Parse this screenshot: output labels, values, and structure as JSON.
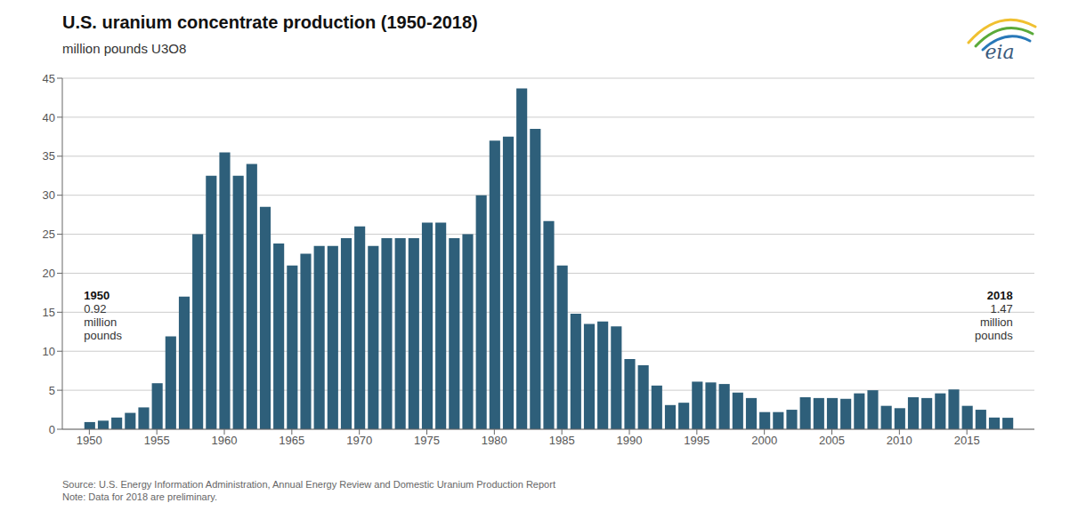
{
  "chart_data": {
    "type": "bar",
    "title": "U.S. uranium concentrate production (1950-2018)",
    "subtitle": "million pounds U3O8",
    "x": [
      1950,
      1951,
      1952,
      1953,
      1954,
      1955,
      1956,
      1957,
      1958,
      1959,
      1960,
      1961,
      1962,
      1963,
      1964,
      1965,
      1966,
      1967,
      1968,
      1969,
      1970,
      1971,
      1972,
      1973,
      1974,
      1975,
      1976,
      1977,
      1978,
      1979,
      1980,
      1981,
      1982,
      1983,
      1984,
      1985,
      1986,
      1987,
      1988,
      1989,
      1990,
      1991,
      1992,
      1993,
      1994,
      1995,
      1996,
      1997,
      1998,
      1999,
      2000,
      2001,
      2002,
      2003,
      2004,
      2005,
      2006,
      2007,
      2008,
      2009,
      2010,
      2011,
      2012,
      2013,
      2014,
      2015,
      2016,
      2017,
      2018
    ],
    "values": [
      0.92,
      1.1,
      1.5,
      2.1,
      2.8,
      5.9,
      11.9,
      17.0,
      25.0,
      32.5,
      35.5,
      32.5,
      34.0,
      28.5,
      23.8,
      21.0,
      22.5,
      23.5,
      23.5,
      24.5,
      26.0,
      23.5,
      24.5,
      24.5,
      24.5,
      26.5,
      26.5,
      24.5,
      25.0,
      30.0,
      37.0,
      37.5,
      43.7,
      38.5,
      26.7,
      21.0,
      14.8,
      13.5,
      13.8,
      13.2,
      9.0,
      8.2,
      5.6,
      3.1,
      3.4,
      6.1,
      6.0,
      5.8,
      4.7,
      4.0,
      2.2,
      2.2,
      2.5,
      4.1,
      4.0,
      4.0,
      3.9,
      4.6,
      5.0,
      3.0,
      2.7,
      4.1,
      4.0,
      4.6,
      5.1,
      3.0,
      2.5,
      1.5,
      1.47
    ],
    "color": "#2e5f7a",
    "xlim": [
      1948,
      2020
    ],
    "xticks": [
      1950,
      1955,
      1960,
      1965,
      1970,
      1975,
      1980,
      1985,
      1990,
      1995,
      2000,
      2005,
      2010,
      2015
    ],
    "ylim": [
      0,
      45
    ],
    "yticks": [
      0,
      5,
      10,
      15,
      20,
      25,
      30,
      35,
      40,
      45
    ],
    "grid": true,
    "annotations": [
      {
        "x": 1950,
        "value": 0.92,
        "text": "million\npounds"
      },
      {
        "x": 2018,
        "value": 1.47,
        "text": "million\npounds"
      },
      {
        "text": "eia"
      }
    ],
    "source": "Source: U.S. Energy Information Administration, Annual Energy Review and Domestic Uranium Production Report\nNote: Data for 2018 are preliminary."
  }
}
